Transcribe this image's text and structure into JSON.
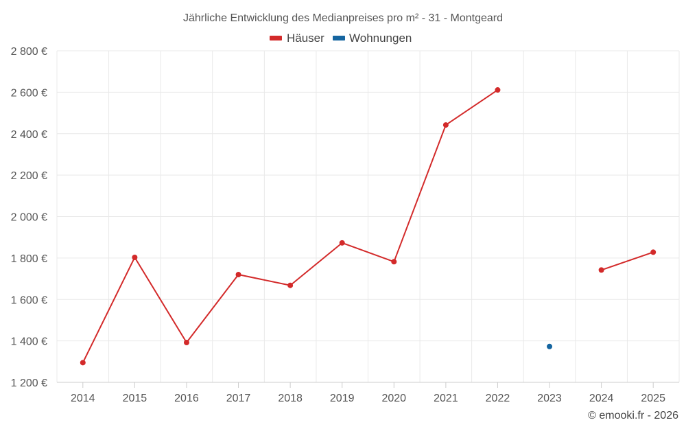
{
  "chart_data": {
    "type": "line",
    "title": "Jährliche Entwicklung des Medianpreises pro m² - 31 - Montgeard",
    "categories": [
      "2014",
      "2015",
      "2016",
      "2017",
      "2018",
      "2019",
      "2020",
      "2021",
      "2022",
      "2023",
      "2024",
      "2025"
    ],
    "ylim": [
      1200,
      2800
    ],
    "yticks": [
      1200,
      1400,
      1600,
      1800,
      2000,
      2200,
      2400,
      2600,
      2800
    ],
    "ytick_labels": [
      "1 200 €",
      "1 400 €",
      "1 600 €",
      "1 800 €",
      "2 000 €",
      "2 200 €",
      "2 400 €",
      "2 600 €",
      "2 800 €"
    ],
    "grid": true,
    "legend_position": "top-center",
    "series": [
      {
        "name": "Häuser",
        "color": "#d32a2a",
        "values": [
          1295,
          1803,
          1392,
          1720,
          1668,
          1873,
          1782,
          2442,
          2611,
          null,
          1742,
          1828
        ]
      },
      {
        "name": "Wohnungen",
        "color": "#1565a0",
        "values": [
          null,
          null,
          null,
          null,
          null,
          null,
          null,
          null,
          null,
          1373,
          null,
          null
        ]
      }
    ]
  },
  "credit": "© emooki.fr - 2026"
}
